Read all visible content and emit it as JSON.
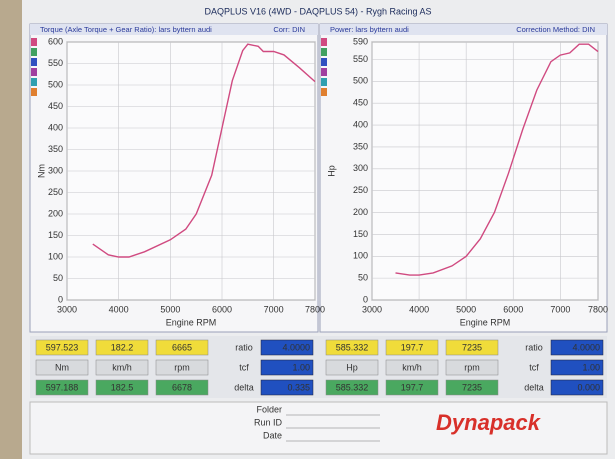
{
  "header": {
    "title": "DAQPLUS V16 (4WD - DAQPLUS 54) - Rygh Racing AS"
  },
  "chart_data": [
    {
      "type": "line",
      "title": "Torque (Axle Torque + Gear Ratio): lars byttern audi",
      "subtitle": "Corr: DIN",
      "x_label": "Engine RPM",
      "y_label": "Nm",
      "x": [
        3500,
        3800,
        4000,
        4200,
        4500,
        5000,
        5300,
        5500,
        5800,
        6000,
        6200,
        6400,
        6500,
        6700,
        6800,
        7000,
        7200,
        7500,
        7800
      ],
      "values": [
        130,
        105,
        100,
        100,
        112,
        140,
        165,
        200,
        290,
        400,
        510,
        580,
        595,
        590,
        578,
        578,
        570,
        540,
        508
      ],
      "color": "#d04a80",
      "xlim": [
        3000,
        7800
      ],
      "xticks": [
        3000,
        4000,
        5000,
        6000,
        7000,
        7800
      ],
      "ylim": [
        0,
        600
      ],
      "yticks": [
        0,
        50,
        100,
        150,
        200,
        250,
        300,
        350,
        400,
        450,
        500,
        550,
        600
      ],
      "grid": true
    },
    {
      "type": "line",
      "title": "Power: lars byttern audi",
      "subtitle": "Correction Method: DIN",
      "x_label": "Engine RPM",
      "y_label": "Hp",
      "x": [
        3500,
        3800,
        4000,
        4300,
        4700,
        5000,
        5300,
        5600,
        5900,
        6200,
        6500,
        6800,
        7000,
        7200,
        7400,
        7600,
        7800
      ],
      "values": [
        62,
        57,
        57,
        62,
        78,
        100,
        140,
        200,
        290,
        390,
        480,
        545,
        560,
        565,
        585,
        585,
        568
      ],
      "color": "#d04a80",
      "xlim": [
        3000,
        7800
      ],
      "xticks": [
        3000,
        4000,
        5000,
        6000,
        7000,
        7800
      ],
      "ylim": [
        0,
        590
      ],
      "yticks": [
        0,
        50,
        100,
        150,
        200,
        250,
        300,
        350,
        400,
        450,
        500,
        550,
        590
      ],
      "grid": true
    }
  ],
  "readouts": [
    {
      "rows": [
        [
          "597.523",
          "182.2",
          "6665"
        ],
        [
          "Nm",
          "km/h",
          "rpm"
        ],
        [
          "597.188",
          "182.5",
          "6678"
        ]
      ],
      "settings": [
        [
          "ratio",
          "4.0000"
        ],
        [
          "tcf",
          "1.00"
        ],
        [
          "delta",
          "0.335"
        ]
      ]
    },
    {
      "rows": [
        [
          "585.332",
          "197.7",
          "7235"
        ],
        [
          "Hp",
          "km/h",
          "rpm"
        ],
        [
          "585.332",
          "197.7",
          "7235"
        ]
      ],
      "settings": [
        [
          "ratio",
          "4.0000"
        ],
        [
          "tcf",
          "1.00"
        ],
        [
          "delta",
          "0.000"
        ]
      ]
    }
  ],
  "footer": {
    "fields": [
      "Folder",
      "Run ID",
      "Date"
    ],
    "logo": "Dynapack"
  }
}
